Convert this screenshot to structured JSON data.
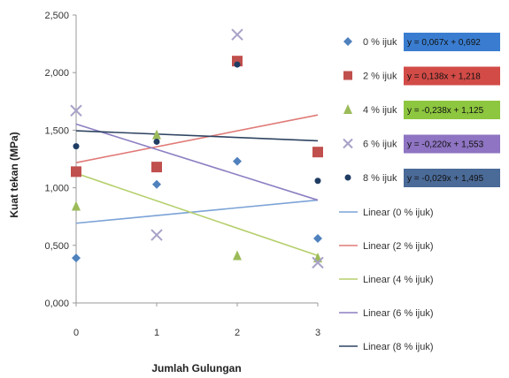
{
  "chart_data": {
    "type": "scatter",
    "xlabel": "Jumlah Gulungan",
    "ylabel": "Kuat tekan (MPa)",
    "xlim": [
      0,
      3
    ],
    "ylim": [
      0,
      2.5
    ],
    "x_ticks": [
      "0",
      "1",
      "2",
      "3"
    ],
    "y_ticks": [
      "0,000",
      "0,500",
      "1,000",
      "1,500",
      "2,000",
      "2,500"
    ],
    "grid": false,
    "legend_position": "right",
    "series": [
      {
        "name": "0 % ijuk",
        "marker": "diamond",
        "color": "#4f81bd",
        "x": [
          0,
          1,
          2,
          3
        ],
        "y": [
          0.39,
          1.03,
          1.23,
          0.56
        ],
        "equation": "y = 0,067x + 0,692",
        "eq_bg": "#3a7dd0",
        "trend_name": "Linear (0 % ijuk)",
        "trend_color": "#7ba2d6",
        "trend_slope": 0.067,
        "trend_intercept": 0.692
      },
      {
        "name": "2 % ijuk",
        "marker": "square",
        "color": "#c0504d",
        "x": [
          0,
          1,
          2,
          3
        ],
        "y": [
          1.14,
          1.18,
          2.1,
          1.31
        ],
        "equation": "y = 0,138x + 1,218",
        "eq_bg": "#d24b47",
        "trend_name": "Linear (2 % ijuk)",
        "trend_color": "#e07b78",
        "trend_slope": 0.138,
        "trend_intercept": 1.218
      },
      {
        "name": "4 % ijuk",
        "marker": "triangle",
        "color": "#9bbb59",
        "x": [
          0,
          1,
          2,
          3
        ],
        "y": [
          0.84,
          1.46,
          0.41,
          0.39
        ],
        "equation": "y = -0,238x + 1,125",
        "eq_bg": "#8dc63f",
        "trend_name": "Linear (4 % ijuk)",
        "trend_color": "#b5cf6b",
        "trend_slope": -0.238,
        "trend_intercept": 1.125
      },
      {
        "name": "6 % ijuk",
        "marker": "x",
        "color": "#a9a1c8",
        "x": [
          0,
          1,
          2,
          3
        ],
        "y": [
          1.67,
          0.59,
          2.33,
          0.35
        ],
        "equation": "y = -0,220x + 1,553",
        "eq_bg": "#8e74c2",
        "trend_name": "Linear (6 % ijuk)",
        "trend_color": "#8d7fc2",
        "trend_slope": -0.22,
        "trend_intercept": 1.553
      },
      {
        "name": "8 % ijuk",
        "marker": "circle",
        "color": "#1f3c63",
        "x": [
          0,
          1,
          2,
          3
        ],
        "y": [
          1.36,
          1.4,
          2.07,
          1.06
        ],
        "equation": "y = -0,029x + 1,495",
        "eq_bg": "#4a6a97",
        "trend_name": "Linear (8 % ijuk)",
        "trend_color": "#2f4462",
        "trend_slope": -0.029,
        "trend_intercept": 1.495
      }
    ]
  }
}
